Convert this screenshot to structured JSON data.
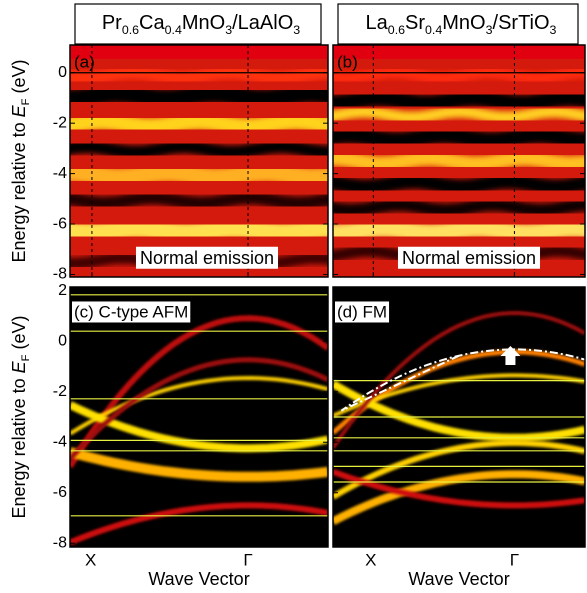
{
  "chart_data": [
    {
      "type": "heatmap",
      "panel_label": "(a)",
      "annotation": "Normal emission",
      "title": [
        {
          "text": "Pr"
        },
        {
          "text": "0.6",
          "sub": true
        },
        {
          "text": "Ca"
        },
        {
          "text": "0.4",
          "sub": true
        },
        {
          "text": "MnO"
        },
        {
          "text": "3",
          "sub": true
        },
        {
          "text": "/LaAlO"
        },
        {
          "text": "3",
          "sub": true
        }
      ],
      "ylabel": [
        {
          "text": "Energy relative to "
        },
        {
          "text": "E",
          "italic": true
        },
        {
          "text": "F",
          "sub": true
        },
        {
          "text": " (eV)"
        }
      ],
      "ylim": [
        -8.1,
        1.1
      ],
      "yticks": [
        0,
        -2,
        -4,
        -6,
        -8
      ],
      "categories": [
        "X",
        "Γ"
      ]
    },
    {
      "type": "heatmap",
      "panel_label": "(b)",
      "annotation": "Normal emission",
      "title": [
        {
          "text": "La"
        },
        {
          "text": "0.6",
          "sub": true
        },
        {
          "text": "Sr"
        },
        {
          "text": "0.4",
          "sub": true
        },
        {
          "text": "MnO"
        },
        {
          "text": "3",
          "sub": true
        },
        {
          "text": "/SrTiO"
        },
        {
          "text": "3",
          "sub": true
        }
      ],
      "ylim": [
        -8.1,
        1.1
      ],
      "yticks": [
        0,
        -2,
        -4,
        -6,
        -8
      ],
      "categories": [
        "X",
        "Γ"
      ]
    },
    {
      "type": "bands",
      "panel_label": "(c) C-type AFM",
      "ylabel": [
        {
          "text": "Energy relative to "
        },
        {
          "text": "E",
          "italic": true
        },
        {
          "text": "F",
          "sub": true
        },
        {
          "text": " (eV)"
        }
      ],
      "xlabel": "Wave Vector",
      "ylim": [
        -8.15,
        2.15
      ],
      "yticks": [
        2,
        0,
        -2,
        -4,
        -6,
        -8
      ],
      "categories": [
        "X",
        "Γ"
      ]
    },
    {
      "type": "bands",
      "panel_label": "(d) FM",
      "xlabel": "Wave Vector",
      "ylim": [
        -8.15,
        2.15
      ],
      "yticks": [
        2,
        0,
        -2,
        -4,
        -6,
        -8
      ],
      "categories": [
        "X",
        "Γ"
      ]
    }
  ]
}
